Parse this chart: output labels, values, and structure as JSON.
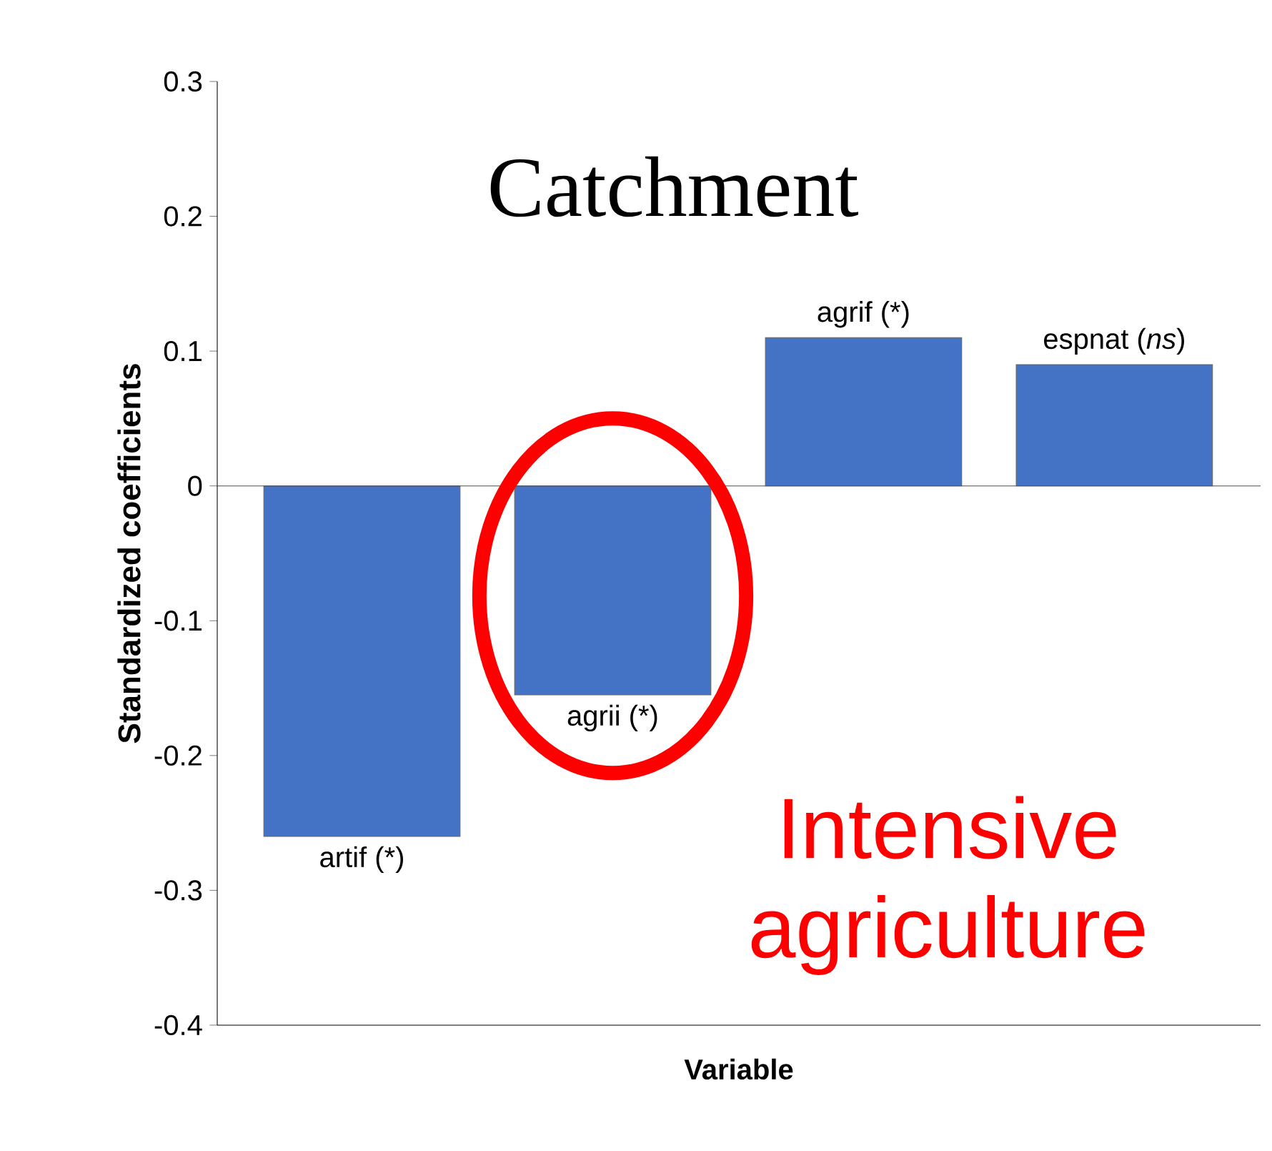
{
  "chart_data": {
    "type": "bar",
    "title": "Catchment",
    "xlabel": "Variable",
    "ylabel": "Standardized coefficients",
    "categories": [
      "artif (*)",
      "agrii (*)",
      "agrif (*)",
      "espnat (*ns*)"
    ],
    "values": [
      -0.26,
      -0.155,
      0.11,
      0.09
    ],
    "color": "#4472c4",
    "ylim": [
      -0.4,
      0.3
    ],
    "yticks": [
      -0.4,
      -0.3,
      -0.2,
      -0.1,
      0,
      0.1,
      0.2,
      0.3
    ],
    "tick_labels": "y",
    "annotations": [
      {
        "text": "Intensive agriculture",
        "x": "agrii (*)",
        "y": -0.155
      }
    ]
  }
}
